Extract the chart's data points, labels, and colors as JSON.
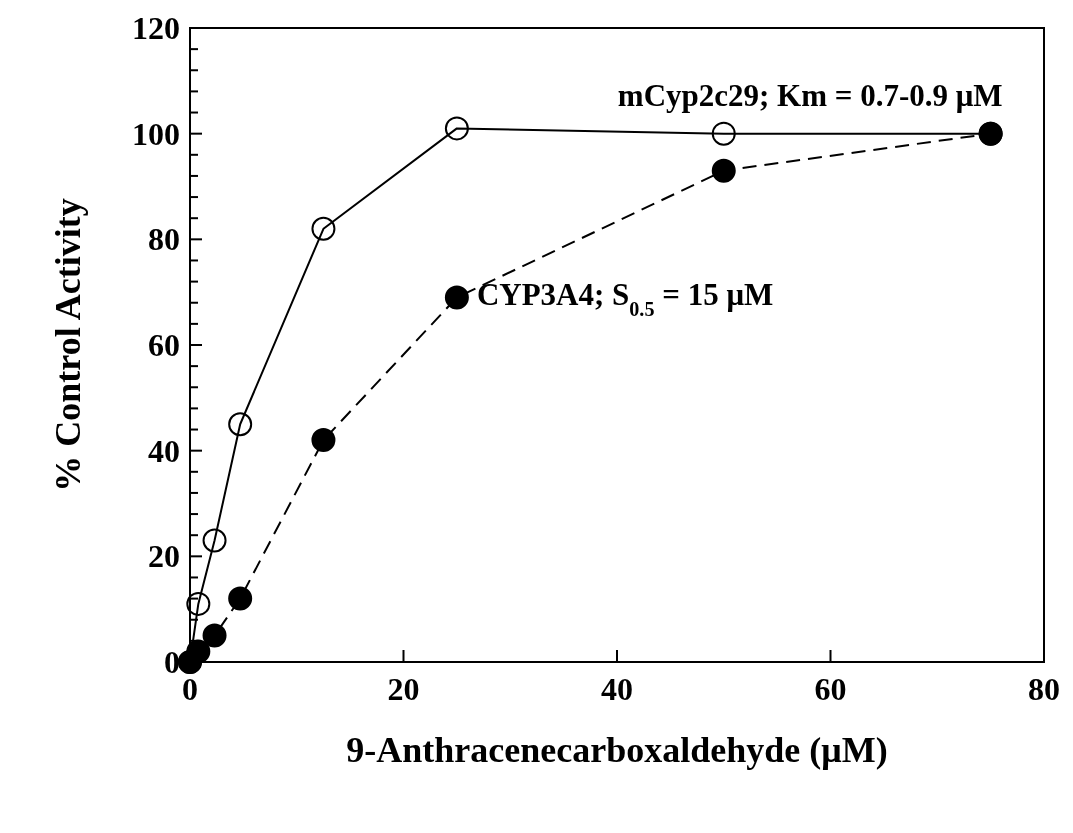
{
  "chart_data": {
    "type": "line",
    "xlabel": "9-Anthracenecarboxaldehyde (μM)",
    "ylabel": "% Control Activity",
    "xlim": [
      0,
      80
    ],
    "xticks": [
      0,
      20,
      40,
      60,
      80
    ],
    "ylim": [
      0,
      120
    ],
    "yticks": [
      0,
      20,
      40,
      60,
      80,
      100,
      120
    ],
    "grid": false,
    "marker": "circle",
    "series": [
      {
        "name": "mCyp2c29; Km = 0.7-0.9 μM",
        "color": "#000000",
        "line_style": "solid",
        "x": [
          0,
          0.78,
          2.3,
          4.7,
          12.5,
          25,
          50,
          75
        ],
        "values": [
          0,
          11,
          23,
          45,
          82,
          101,
          100,
          100
        ]
      },
      {
        "name": "CYP3A4; S$_{0.5}$ = 15 μM",
        "color": "#000000",
        "line_style": "dashed",
        "x": [
          0,
          0.78,
          2.3,
          4.7,
          12.5,
          25,
          50,
          75
        ],
        "values": [
          0,
          2,
          5,
          12,
          42,
          69,
          93,
          100
        ]
      }
    ]
  }
}
